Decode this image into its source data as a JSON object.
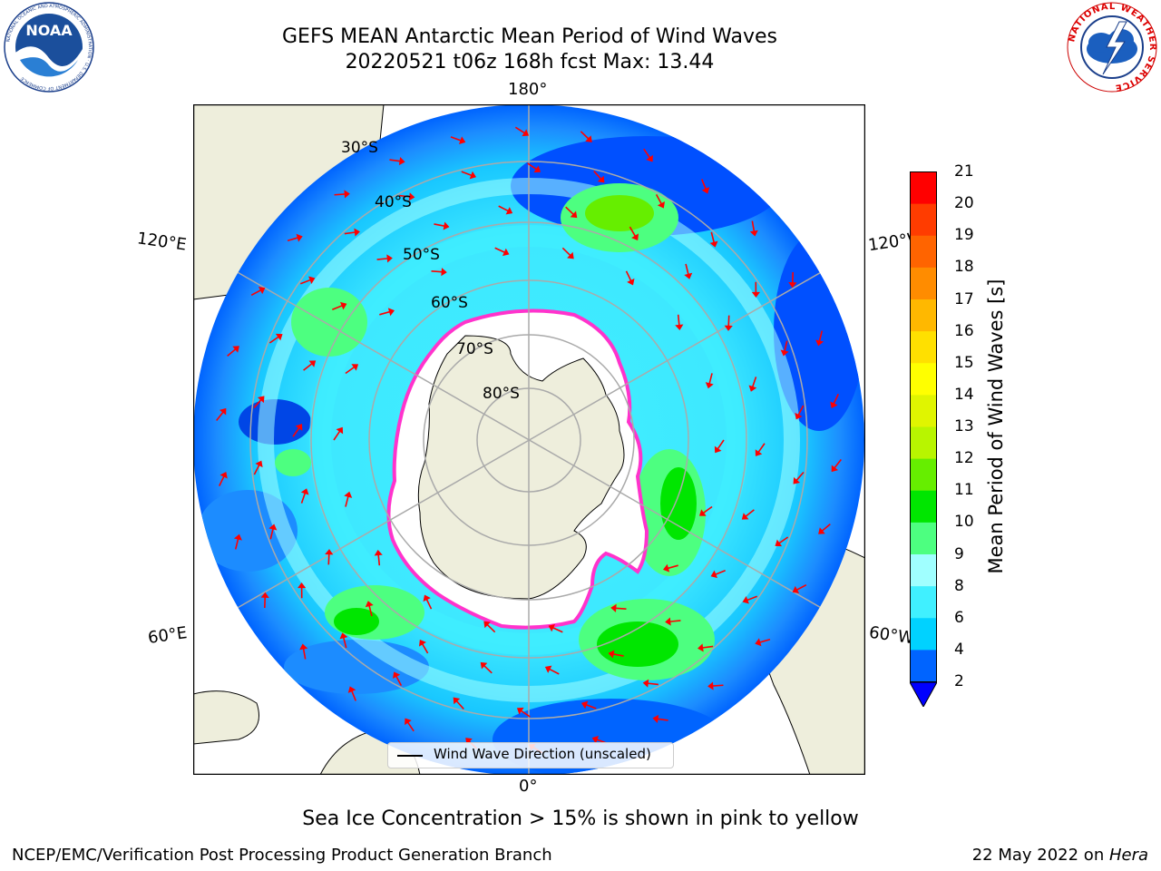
{
  "header": {
    "title_line1": "GEFS MEAN Antarctic Mean Period of Wind Waves",
    "title_line2": "20220521 t06z 168h fcst   Max: 13.44"
  },
  "logos": {
    "left": "noaa-logo",
    "right": "nws-logo",
    "noaa_text": "NOAA",
    "nws_ring_text": "NATIONAL WEATHER SERVICE",
    "noaa_ring_text": "NATIONAL OCEANIC AND ATMOSPHERIC ADMINISTRATION · U.S. DEPARTMENT OF COMMERCE"
  },
  "map": {
    "projection": "south-polar-stereographic",
    "longitude_labels": {
      "top": "180°",
      "bottom": "0°",
      "upper_left": "120°E",
      "upper_right": "120°W",
      "lower_left": "60°E",
      "lower_right": "60°W"
    },
    "latitude_labels": [
      "30°S",
      "40°S",
      "50°S",
      "60°S",
      "70°S",
      "80°S"
    ],
    "colors": {
      "land": "#eeeedc",
      "ice": "#ffffff",
      "ice_edge": "#ff33cc",
      "arrow": "#ff0000",
      "grid": "#aaaaaa"
    }
  },
  "colorbar": {
    "label": "Mean Period of Wind Waves [s]",
    "ticks": [
      "2",
      "4",
      "6",
      "8",
      "9",
      "10",
      "11",
      "12",
      "13",
      "14",
      "15",
      "16",
      "17",
      "18",
      "19",
      "20",
      "21"
    ],
    "colors": [
      "#0064ff",
      "#00d2ff",
      "#40f0ff",
      "#a0ffff",
      "#4dff80",
      "#00e600",
      "#66ee00",
      "#b8f500",
      "#e0f500",
      "#ffff00",
      "#ffe000",
      "#ffb800",
      "#ff8c00",
      "#ff6400",
      "#ff3c00",
      "#ff0000"
    ],
    "extend_color": "#0000ff"
  },
  "legend": {
    "label": "Wind Wave Direction (unscaled)"
  },
  "notes": {
    "sea_ice": "Sea Ice Concentration > 15% is shown in pink to yellow"
  },
  "footer": {
    "left": "NCEP/EMC/Verification Post Processing Product Generation Branch",
    "right_prefix": "22 May 2022 on ",
    "right_host": "Hera"
  }
}
